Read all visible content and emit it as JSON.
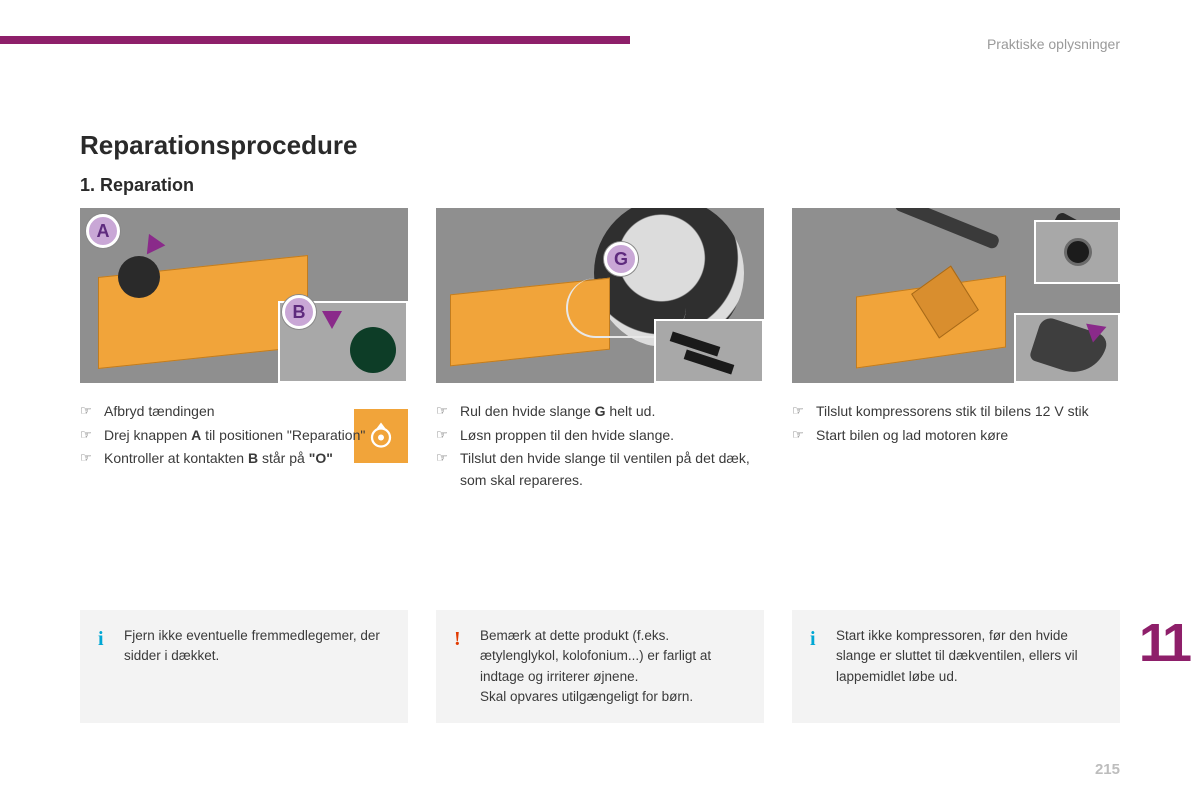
{
  "brand_color": "#8e1f6a",
  "accent_orange": "#f1a43a",
  "section_label": "Praktiske oplysninger",
  "title": "Reparationsprocedure",
  "subtitle": "1. Reparation",
  "chapter_number": "11",
  "page_number": "215",
  "columns": [
    {
      "callouts": [
        "A",
        "B"
      ],
      "steps": [
        {
          "text": "Afbryd tændingen"
        },
        {
          "parts": [
            "Drej knappen ",
            {
              "b": "A"
            },
            " til positionen \"Reparation\""
          ]
        },
        {
          "parts": [
            "Kontroller at kontakten ",
            {
              "b": "B"
            },
            " står på ",
            {
              "b": "\"O\""
            }
          ]
        }
      ],
      "has_tire_icon": true
    },
    {
      "callouts": [
        "G"
      ],
      "steps": [
        {
          "parts": [
            "Rul den hvide slange ",
            {
              "b": "G"
            },
            " helt ud."
          ]
        },
        {
          "text": "Løsn proppen til den hvide slange."
        },
        {
          "text": "Tilslut den hvide slange til ventilen på det dæk, som skal repareres."
        }
      ]
    },
    {
      "callouts": [],
      "steps": [
        {
          "text": "Tilslut kompressorens stik til bilens 12 V stik"
        },
        {
          "text": "Start bilen og lad motoren køre"
        }
      ]
    }
  ],
  "notes": [
    {
      "type": "info",
      "text": "Fjern ikke eventuelle fremmedlegemer, der sidder i dækket."
    },
    {
      "type": "warn",
      "text": "Bemærk at dette produkt (f.eks. ætylenglykol, kolofonium...) er farligt at indtage og irriterer øjnene.\nSkal opvares utilgængeligt for børn."
    },
    {
      "type": "info",
      "text": "Start ikke kompressoren, før den hvide slange er sluttet til dækventilen, ellers vil lappemidlet løbe ud."
    }
  ],
  "colors": {
    "note_bg": "#f3f3f3",
    "info_mark": "#00a7d4",
    "warn_mark": "#e13a00",
    "text": "#3a3a3a",
    "muted": "#9a9a9a",
    "pagenum": "#bdbdbd",
    "callout_fill": "#c9a7d6",
    "callout_text": "#5e2a7e",
    "arrow": "#8a2a8a",
    "figure_bg": "#8f8f8f"
  }
}
